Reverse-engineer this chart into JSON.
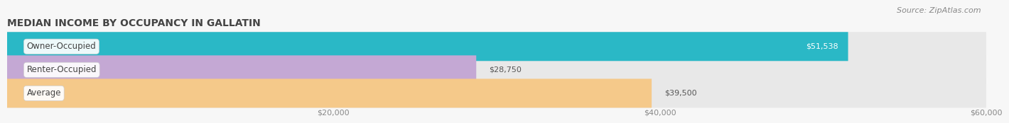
{
  "title": "MEDIAN INCOME BY OCCUPANCY IN GALLATIN",
  "source": "Source: ZipAtlas.com",
  "categories": [
    "Owner-Occupied",
    "Renter-Occupied",
    "Average"
  ],
  "values": [
    51538,
    28750,
    39500
  ],
  "labels": [
    "$51,538",
    "$28,750",
    "$39,500"
  ],
  "bar_colors": [
    "#2ab8c6",
    "#c4a8d4",
    "#f5c98a"
  ],
  "xlim": [
    0,
    60000
  ],
  "xticks": [
    20000,
    40000,
    60000
  ],
  "xticklabels": [
    "$20,000",
    "$40,000",
    "$60,000"
  ],
  "background_color": "#f7f7f7",
  "bar_bg_color": "#e8e8e8",
  "label_inside_color_0": "#ffffff",
  "label_inside_color_1": "#555555",
  "label_inside_color_2": "#555555",
  "title_fontsize": 10,
  "source_fontsize": 8,
  "label_fontsize": 8,
  "tick_fontsize": 8,
  "cat_fontsize": 8.5
}
